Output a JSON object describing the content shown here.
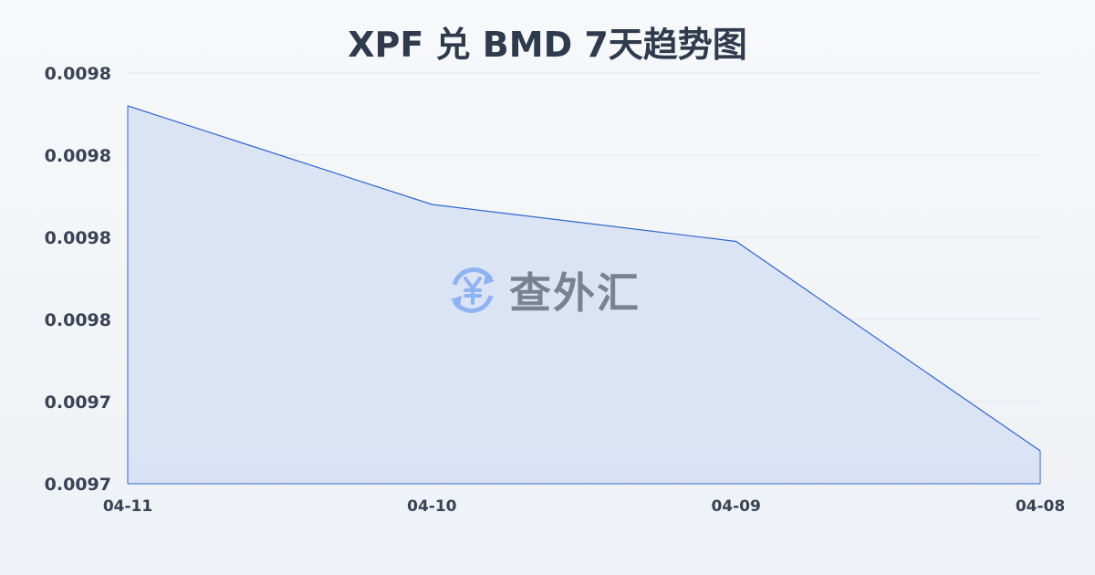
{
  "chart_data": {
    "type": "area",
    "title": "XPF 兑 BMD 7天趋势图",
    "categories": [
      "04-11",
      "04-10",
      "04-09",
      "04-08"
    ],
    "values": [
      0.009812,
      0.009788,
      0.009779,
      0.009728
    ],
    "ylim": [
      0.00972,
      0.00982
    ],
    "yticks": [
      0.00982,
      0.0098,
      0.00978,
      0.00976,
      0.00974,
      0.00972
    ],
    "ytick_labels": [
      "0.0098",
      "0.0098",
      "0.0098",
      "0.0098",
      "0.0097",
      "0.0097"
    ],
    "xlabel": "",
    "ylabel": "",
    "grid": true,
    "colors": {
      "line": "#3366cc",
      "fill": "#d6e0f5"
    }
  },
  "watermark": {
    "text": "查外汇",
    "icon": "yen-exchange-icon"
  }
}
